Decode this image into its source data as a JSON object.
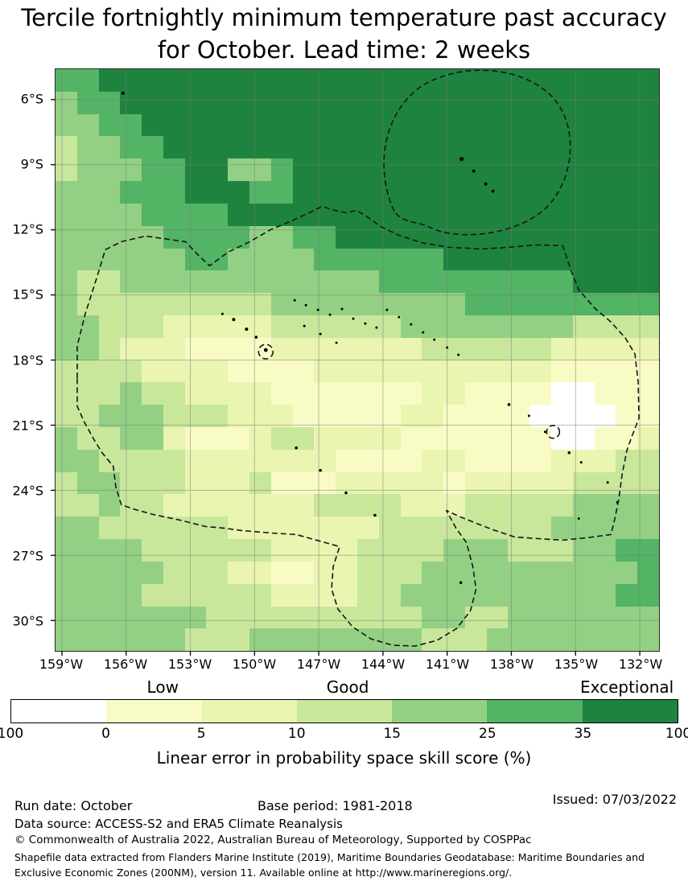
{
  "chart_data": {
    "type": "heatmap",
    "title": "Tercile fortnightly minimum temperature past accuracy for October. Lead time: 2 weeks",
    "lon_range_deg_w": [
      159.3,
      131.1
    ],
    "lat_range_deg_s": [
      4.6,
      31.4
    ],
    "grid_on": true,
    "colorbar": {
      "caption": "Linear error in probability space skill score (%)",
      "quality_labels": [
        "Low",
        "Good",
        "Exceptional"
      ],
      "tick_labels": [
        "100",
        "0",
        "5",
        "10",
        "15",
        "25",
        "35",
        "100"
      ],
      "bins": [
        {
          "range": "100–0",
          "color": "#ffffff"
        },
        {
          "range": "0–5",
          "color": "#f9fbc5"
        },
        {
          "range": "5–10",
          "color": "#e9f5b0"
        },
        {
          "range": "10–15",
          "color": "#c8e79b"
        },
        {
          "range": "15–25",
          "color": "#93d084"
        },
        {
          "range": "25–35",
          "color": "#53b465"
        },
        {
          "range": "35–100",
          "color": "#1f8340"
        }
      ]
    },
    "grid_encoding": "Each string is one latitude row (north to south, 4.6S-31.4S); each character one longitude cell (west to east, 159.3W-131.1W); digit = colorbar bin index 0-6 estimated from the figure",
    "grid_rows": [
      "5566666666666666666666666666",
      "4556666666666666666666666666",
      "4455666666666666666666666666",
      "3445566666666666666666666666",
      "3444556644566666666666666666",
      "4445556665566666666666666666",
      "4444555566666666666666666666",
      "4444455554455666666666666666",
      "4444445544445555556666666666",
      "4334444444444445555555556666",
      "4333333333444444444555555555",
      "4433322222333333444444443333",
      "4432221111222222233333322222",
      "3333222211112222222222211111",
      "3334332222111111122111100111",
      "3344433322211111221111000011",
      "4334421112332222111111100112",
      "4433332222222111122111122233",
      "3443332223111222221222223333",
      "3343322222223333222333334444",
      "4433333322222223333333344444",
      "4444333333222233334443334455",
      "4444433322112233344444444445",
      "4444333333222233444444444455",
      "4444444333333333344334444444",
      "4444443334444444433344444444"
    ]
  },
  "map": {
    "lat_ticks": [
      "6°S",
      "9°S",
      "12°S",
      "15°S",
      "18°S",
      "21°S",
      "24°S",
      "27°S",
      "30°S"
    ],
    "lon_ticks": [
      "159°W",
      "156°W",
      "153°W",
      "150°W",
      "147°W",
      "144°W",
      "141°W",
      "138°W",
      "135°W",
      "132°W"
    ]
  },
  "footer": {
    "run_date": "Run date: October",
    "base_period": "Base period: 1981-2018",
    "issued": "Issued: 07/03/2022",
    "data_source": "Data source: ACCESS-S2 and ERA5 Climate Reanalysis",
    "copyright": "© Commonwealth of Australia 2022, Australian Bureau of Meteorology, Supported by COSPPac",
    "shapefile_note": "Shapefile data extracted from Flanders Marine Institute (2019), Maritime Boundaries Geodatabase: Maritime Boundaries and Exclusive Economic Zones (200NM), version 11. Available online at http://www.marineregions.org/."
  }
}
